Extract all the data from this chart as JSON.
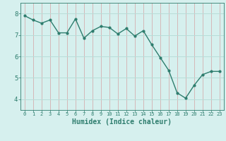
{
  "x": [
    0,
    1,
    2,
    3,
    4,
    5,
    6,
    7,
    8,
    9,
    10,
    11,
    12,
    13,
    14,
    15,
    16,
    17,
    18,
    19,
    20,
    21,
    22,
    23
  ],
  "y": [
    7.9,
    7.7,
    7.55,
    7.7,
    7.1,
    7.1,
    7.75,
    6.85,
    7.2,
    7.4,
    7.35,
    7.05,
    7.3,
    6.95,
    7.2,
    6.55,
    5.95,
    5.35,
    4.3,
    4.05,
    4.65,
    5.15,
    5.3,
    5.3
  ],
  "line_color": "#2e7d6e",
  "marker": "o",
  "marker_size": 2,
  "line_width": 1.0,
  "background_color": "#d6f0ee",
  "grid_color": "#b8ddd8",
  "tick_color": "#2e7d6e",
  "label_color": "#2e7d6e",
  "xlabel": "Humidex (Indice chaleur)",
  "xlabel_fontsize": 7,
  "ylim": [
    3.5,
    8.5
  ],
  "yticks": [
    4,
    5,
    6,
    7,
    8
  ],
  "xticks": [
    0,
    1,
    2,
    3,
    4,
    5,
    6,
    7,
    8,
    9,
    10,
    11,
    12,
    13,
    14,
    15,
    16,
    17,
    18,
    19,
    20,
    21,
    22,
    23
  ]
}
